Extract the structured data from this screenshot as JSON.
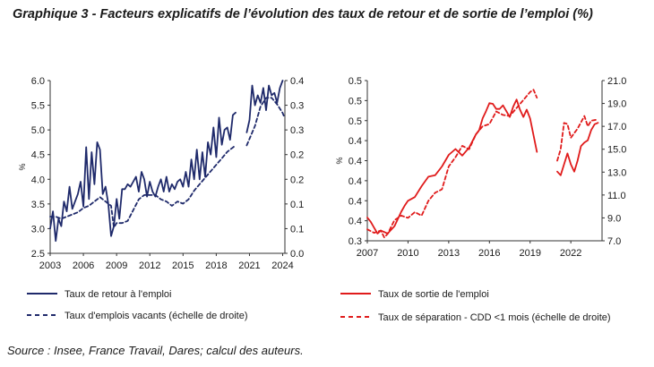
{
  "title": "Graphique 3 -  Facteurs explicatifs de l’évolution des taux de retour et de sortie de l’emploi (%)",
  "source": "Source : Insee, France Travail, Dares; calcul des auteurs.",
  "colors": {
    "left_series": "#1f2a6b",
    "right_series": "#e01b1b",
    "axis": "#333333"
  },
  "chart_data": [
    {
      "type": "line",
      "ylabel": "%",
      "x_ticks": [
        "2003",
        "2006",
        "2009",
        "2012",
        "2015",
        "2018",
        "2021",
        "2024"
      ],
      "xlim": [
        2003,
        2024.2
      ],
      "ylim": [
        2.5,
        6.0
      ],
      "y2lim": [
        0.0,
        0.4
      ],
      "y_ticks": [
        "2.5",
        "3.0",
        "3.5",
        "4.0",
        "4.5",
        "5.0",
        "5.5",
        "6.0"
      ],
      "y2_ticks": [
        "0.0",
        "0.1",
        "0.1",
        "0.2",
        "0.2",
        "0.3",
        "0.3",
        "0.4"
      ],
      "legend_position": "bottom",
      "series": [
        {
          "name": "Taux de retour à l'emploi",
          "style": "solid",
          "axis": "left",
          "segments": [
            {
              "x": [
                2003.0,
                2003.25,
                2003.5,
                2003.75,
                2004.0,
                2004.25,
                2004.5,
                2004.75,
                2005.0,
                2005.25,
                2005.5,
                2005.75,
                2006.0,
                2006.25,
                2006.5,
                2006.75,
                2007.0,
                2007.25,
                2007.5,
                2007.75,
                2008.0,
                2008.25,
                2008.5,
                2008.75,
                2009.0,
                2009.25,
                2009.5,
                2009.75,
                2010.0,
                2010.25,
                2010.5,
                2010.75,
                2011.0,
                2011.25,
                2011.5,
                2011.75,
                2012.0,
                2012.25,
                2012.5,
                2012.75,
                2013.0,
                2013.25,
                2013.5,
                2013.75,
                2014.0,
                2014.25,
                2014.5,
                2014.75,
                2015.0,
                2015.25,
                2015.5,
                2015.75,
                2016.0,
                2016.25,
                2016.5,
                2016.75,
                2017.0,
                2017.25,
                2017.5,
                2017.75,
                2018.0,
                2018.25,
                2018.5,
                2018.75,
                2019.0,
                2019.25,
                2019.5,
                2019.75
              ],
              "y": [
                3.0,
                3.35,
                2.75,
                3.2,
                3.05,
                3.55,
                3.35,
                3.85,
                3.4,
                3.55,
                3.7,
                3.95,
                3.45,
                4.65,
                3.6,
                4.55,
                3.9,
                4.75,
                4.6,
                3.7,
                3.85,
                3.5,
                2.85,
                3.05,
                3.6,
                3.2,
                3.8,
                3.8,
                3.9,
                3.85,
                3.95,
                4.05,
                3.75,
                4.15,
                4.0,
                3.65,
                3.95,
                3.75,
                3.65,
                3.85,
                4.0,
                3.75,
                4.05,
                3.75,
                3.9,
                3.8,
                3.95,
                4.0,
                3.85,
                4.15,
                3.85,
                4.4,
                4.0,
                4.6,
                4.0,
                4.55,
                4.05,
                4.75,
                4.5,
                5.05,
                4.45,
                5.25,
                4.7,
                5.0,
                5.05,
                4.8,
                5.3,
                5.35
              ]
            },
            {
              "x": [
                2020.75,
                2021.0,
                2021.25,
                2021.5,
                2021.75,
                2022.0,
                2022.25,
                2022.5,
                2022.75,
                2023.0,
                2023.25,
                2023.5,
                2023.75,
                2024.0
              ],
              "y": [
                4.95,
                5.2,
                5.9,
                5.5,
                5.7,
                5.55,
                5.85,
                5.4,
                5.9,
                5.7,
                5.75,
                5.55,
                5.85,
                6.0
              ]
            }
          ]
        },
        {
          "name": "Taux d'emplois vacants (échelle de droite)",
          "style": "dashed",
          "axis": "right",
          "segments": [
            {
              "x": [
                2003.0,
                2003.5,
                2004.0,
                2004.5,
                2005.0,
                2005.5,
                2006.0,
                2006.5,
                2007.0,
                2007.5,
                2008.0,
                2008.5,
                2008.75,
                2009.0,
                2009.5,
                2010.0,
                2010.5,
                2011.0,
                2011.5,
                2012.0,
                2012.5,
                2013.0,
                2013.5,
                2014.0,
                2014.5,
                2015.0,
                2015.5,
                2016.0,
                2016.5,
                2017.0,
                2017.5,
                2018.0,
                2018.5,
                2019.0,
                2019.5,
                2019.75
              ],
              "y": [
                0.085,
                0.085,
                0.08,
                0.085,
                0.09,
                0.095,
                0.105,
                0.11,
                0.12,
                0.13,
                0.12,
                0.11,
                0.06,
                0.07,
                0.07,
                0.075,
                0.1,
                0.125,
                0.135,
                0.135,
                0.135,
                0.125,
                0.12,
                0.11,
                0.12,
                0.115,
                0.125,
                0.145,
                0.16,
                0.175,
                0.19,
                0.205,
                0.22,
                0.235,
                0.245,
                0.25
              ]
            },
            {
              "x": [
                2020.75,
                2021.0,
                2021.5,
                2022.0,
                2022.5,
                2023.0,
                2023.5,
                2024.0,
                2024.15
              ],
              "y": [
                0.25,
                0.265,
                0.295,
                0.34,
                0.36,
                0.36,
                0.345,
                0.325,
                0.315
              ]
            }
          ]
        }
      ]
    },
    {
      "type": "line",
      "ylabel": "%",
      "x_ticks": [
        "2007",
        "2010",
        "2013",
        "2016",
        "2019",
        "2022"
      ],
      "xlim": [
        2007,
        2024.3
      ],
      "ylim": [
        0.3,
        0.52
      ],
      "y_ticks": [
        "0.3",
        "0.4",
        "0.4",
        "0.4",
        "0.4",
        "0.4",
        "0.5",
        "0.5",
        "0.5"
      ],
      "y2lim": [
        7.0,
        21.0
      ],
      "y2_ticks": [
        "7.0",
        "9.0",
        "11.0",
        "13.0",
        "15.0",
        "17.0",
        "19.0",
        "21.0"
      ],
      "legend_position": "bottom",
      "series": [
        {
          "name": "Taux de sortie de l'emploi",
          "style": "solid",
          "axis": "left",
          "segments": [
            {
              "x": [
                2007.0,
                2007.25,
                2007.5,
                2007.75,
                2008.0,
                2008.25,
                2008.5,
                2008.75,
                2009.0,
                2009.25,
                2009.5,
                2009.75,
                2010.0,
                2010.5,
                2011.0,
                2011.5,
                2012.0,
                2012.5,
                2013.0,
                2013.5,
                2014.0,
                2014.5,
                2015.0,
                2015.25,
                2015.5,
                2015.75,
                2016.0,
                2016.25,
                2016.5,
                2016.75,
                2017.0,
                2017.25,
                2017.5,
                2017.75,
                2018.0,
                2018.25,
                2018.5,
                2018.75,
                2019.0,
                2019.5
              ],
              "y": [
                0.332,
                0.326,
                0.318,
                0.31,
                0.314,
                0.312,
                0.31,
                0.315,
                0.32,
                0.33,
                0.34,
                0.348,
                0.355,
                0.36,
                0.375,
                0.388,
                0.39,
                0.402,
                0.418,
                0.426,
                0.417,
                0.428,
                0.446,
                0.452,
                0.468,
                0.478,
                0.489,
                0.488,
                0.481,
                0.481,
                0.486,
                0.478,
                0.47,
                0.484,
                0.494,
                0.48,
                0.47,
                0.48,
                0.468,
                0.422
              ]
            },
            {
              "x": [
                2021.0,
                2021.25,
                2021.5,
                2021.75,
                2022.0,
                2022.25,
                2022.5,
                2022.75,
                2023.0,
                2023.25,
                2023.5,
                2023.75,
                2024.0
              ],
              "y": [
                0.395,
                0.39,
                0.405,
                0.42,
                0.405,
                0.395,
                0.41,
                0.43,
                0.435,
                0.438,
                0.452,
                0.46,
                0.462
              ]
            }
          ]
        },
        {
          "name": "Taux de séparation - CDD <1 mois (échelle de droite)",
          "style": "dashed",
          "axis": "right",
          "segments": [
            {
              "x": [
                2007.0,
                2007.5,
                2008.0,
                2008.25,
                2008.5,
                2009.0,
                2009.5,
                2010.0,
                2010.5,
                2011.0,
                2011.5,
                2012.0,
                2012.5,
                2013.0,
                2013.5,
                2014.0,
                2014.5,
                2015.0,
                2015.5,
                2016.0,
                2016.5,
                2017.0,
                2017.5,
                2018.0,
                2018.5,
                2019.0,
                2019.25,
                2019.5
              ],
              "y": [
                8.0,
                7.7,
                7.9,
                7.3,
                7.6,
                8.8,
                9.2,
                9.0,
                9.5,
                9.2,
                10.5,
                11.2,
                11.5,
                13.5,
                14.3,
                15.3,
                15.0,
                16.3,
                17.0,
                17.2,
                18.3,
                18.0,
                17.9,
                18.6,
                19.3,
                20.0,
                20.2,
                19.5
              ]
            },
            {
              "x": [
                2021.0,
                2021.25,
                2021.5,
                2021.75,
                2022.0,
                2022.5,
                2023.0,
                2023.25,
                2023.5,
                2024.0
              ],
              "y": [
                14.0,
                15.0,
                17.3,
                17.2,
                16.0,
                16.8,
                17.9,
                17.0,
                17.5,
                17.6
              ]
            }
          ]
        }
      ]
    }
  ]
}
